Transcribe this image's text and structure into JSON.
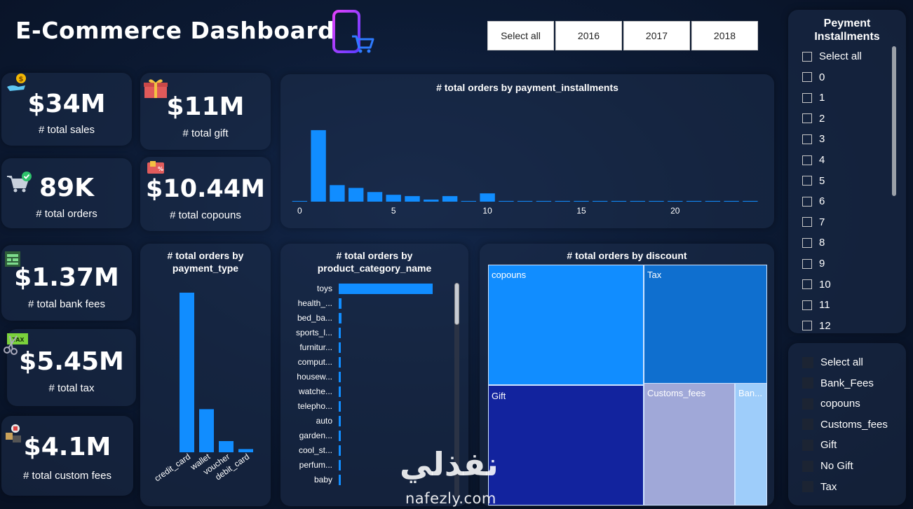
{
  "header": {
    "title": "E-Commerce Dashboard"
  },
  "year_filter": {
    "options": [
      "Select all",
      "2016",
      "2017",
      "2018"
    ]
  },
  "kpis": [
    {
      "value": "$34M",
      "label": "# total sales",
      "icon": "money-hand-icon"
    },
    {
      "value": "$11M",
      "label": "# total gift",
      "icon": "gift-icon"
    },
    {
      "value": "89K",
      "label": "# total orders",
      "icon": "cart-check-icon"
    },
    {
      "value": "$10.44M",
      "label": "# total copouns",
      "icon": "coupon-icon"
    },
    {
      "value": "$1.37M",
      "label": "# total bank fees",
      "icon": "bank-icon"
    },
    {
      "value": "$5.45M",
      "label": "# total tax",
      "icon": "tax-scissors-icon"
    },
    {
      "value": "$4.1M",
      "label": "# total custom fees",
      "icon": "customs-icon"
    }
  ],
  "chart_data": [
    {
      "type": "bar",
      "title": "# total orders by payment_installments",
      "x": [
        0,
        1,
        2,
        3,
        4,
        5,
        6,
        7,
        8,
        9,
        10,
        11,
        12,
        13,
        14,
        15,
        16,
        17,
        18,
        19,
        20,
        21,
        22,
        23,
        24
      ],
      "values": [
        0.3,
        52,
        12,
        10,
        7,
        5,
        4,
        1.5,
        4,
        0.5,
        6,
        0.2,
        0.2,
        0.1,
        0.1,
        0.1,
        0.1,
        0.1,
        0.1,
        0.1,
        0.1,
        0.1,
        0.1,
        0.1,
        0.1
      ],
      "xticks": [
        "0",
        "5",
        "10",
        "15",
        "20"
      ],
      "xtick_values": [
        0,
        5,
        10,
        15,
        20
      ],
      "ylim": [
        0,
        55
      ],
      "color": "#118dff"
    },
    {
      "type": "bar",
      "title": "# total orders by payment_type",
      "categories": [
        "credit_card",
        "wallet",
        "voucher",
        "debit_card"
      ],
      "values": [
        100,
        27,
        7,
        2
      ],
      "ylim": [
        0,
        100
      ],
      "color": "#118dff"
    },
    {
      "type": "bar",
      "orientation": "horizontal",
      "title": "# total orders by product_category_name",
      "categories": [
        "toys",
        "health_...",
        "bed_ba...",
        "sports_l...",
        "furnitur...",
        "comput...",
        "housew...",
        "watche...",
        "telepho...",
        "auto",
        "garden...",
        "cool_st...",
        "perfum...",
        "baby"
      ],
      "values": [
        100,
        3,
        3,
        2.5,
        2.5,
        2.2,
        2,
        2,
        1.8,
        1.6,
        1.5,
        1.3,
        1.2,
        1.1
      ],
      "xlim": [
        0,
        100
      ],
      "color": "#118dff"
    },
    {
      "type": "treemap",
      "title": "# total orders by discount",
      "items": [
        {
          "name": "copouns",
          "color": "#118dff"
        },
        {
          "name": "Tax",
          "color": "#0f6fcf"
        },
        {
          "name": "Gift",
          "color": "#12239e"
        },
        {
          "name": "Customs_fees",
          "color": "#a0a8d8"
        },
        {
          "name": "Ban...",
          "color": "#9ecdfa"
        }
      ]
    }
  ],
  "installments_slicer": {
    "title_line1": "Peyment",
    "title_line2": "Installments",
    "items": [
      "Select all",
      "0",
      "1",
      "2",
      "3",
      "4",
      "5",
      "6",
      "7",
      "8",
      "9",
      "10",
      "11",
      "12"
    ]
  },
  "discount_slicer": {
    "items": [
      "Select all",
      "Bank_Fees",
      "copouns",
      "Customs_fees",
      "Gift",
      "No Gift",
      "Tax"
    ]
  },
  "watermark": {
    "arabic": "نفذلي",
    "latin": "nafezly.com"
  }
}
